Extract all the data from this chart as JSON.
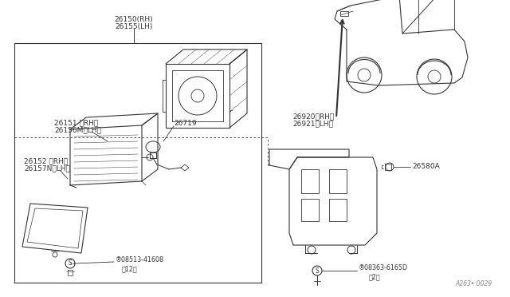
{
  "bg_color": "#ffffff",
  "line_color": "#333333",
  "fig_width": 6.4,
  "fig_height": 3.72,
  "dpi": 100,
  "watermark": "A263• 0029",
  "label_26150": "26150(RH)",
  "label_26155": "26155(LH)",
  "label_26151": "26151 ＜RH＞",
  "label_26156": "26156M＜LH＞",
  "label_26152": "26152 ＜RH＞",
  "label_26157": "26157N＜LH＞",
  "label_26719": "26719",
  "label_08513": "®08513-41608",
  "label_08513_qty": "（12）",
  "label_26920": "26920＜RH＞",
  "label_26921": "26921＜LH＞",
  "label_26580": "26580A",
  "label_08363": "®08363-6165D",
  "label_08363_qty": "（2）",
  "font_size": 6.5,
  "font_size_sm": 5.8
}
